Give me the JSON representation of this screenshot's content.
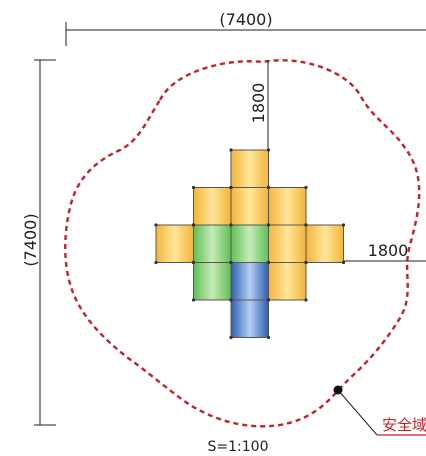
{
  "dimensions": {
    "overall_width": "(7400)",
    "overall_height": "(7400)",
    "clearance_top": "1800",
    "clearance_right": "1800"
  },
  "scale_label": "S=1:100",
  "callout": {
    "label": "安全域"
  },
  "colors": {
    "yellow": "#f6c54e",
    "green": "#7fcf6e",
    "blue": "#3f78c4",
    "safety_line": "#cc1f2b",
    "line": "#222222"
  },
  "blocks": [
    {
      "col": 2,
      "row": 0,
      "color": "yellow"
    },
    {
      "col": 1,
      "row": 1,
      "color": "yellow"
    },
    {
      "col": 2,
      "row": 1,
      "color": "yellow"
    },
    {
      "col": 3,
      "row": 1,
      "color": "yellow"
    },
    {
      "col": 0,
      "row": 2,
      "color": "yellow"
    },
    {
      "col": 1,
      "row": 2,
      "color": "green"
    },
    {
      "col": 2,
      "row": 2,
      "color": "green"
    },
    {
      "col": 3,
      "row": 2,
      "color": "yellow"
    },
    {
      "col": 4,
      "row": 2,
      "color": "yellow"
    },
    {
      "col": 1,
      "row": 3,
      "color": "green"
    },
    {
      "col": 2,
      "row": 3,
      "color": "blue"
    },
    {
      "col": 3,
      "row": 3,
      "color": "yellow"
    },
    {
      "col": 2,
      "row": 4,
      "color": "blue"
    }
  ]
}
